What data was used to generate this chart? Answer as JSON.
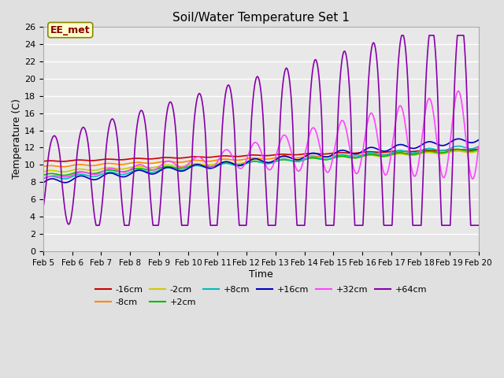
{
  "title": "Soil/Water Temperature Set 1",
  "xlabel": "Time",
  "ylabel": "Temperature (C)",
  "xlim": [
    0,
    15
  ],
  "ylim": [
    0,
    26
  ],
  "yticks": [
    0,
    2,
    4,
    6,
    8,
    10,
    12,
    14,
    16,
    18,
    20,
    22,
    24,
    26
  ],
  "xtick_labels": [
    "Feb 5",
    "Feb 6",
    "Feb 7",
    "Feb 8",
    "Feb 9",
    "Feb 10",
    "Feb 11",
    "Feb 12",
    "Feb 13",
    "Feb 14",
    "Feb 15",
    "Feb 16",
    "Feb 17",
    "Feb 18",
    "Feb 19",
    "Feb 20"
  ],
  "bg_color": "#e0e0e0",
  "plot_bg_color": "#e8e8e8",
  "series": {
    "-16cm": {
      "color": "#cc0000",
      "lw": 1.2
    },
    "-8cm": {
      "color": "#ff8800",
      "lw": 1.2
    },
    "-2cm": {
      "color": "#cccc00",
      "lw": 1.2
    },
    "+2cm": {
      "color": "#00bb00",
      "lw": 1.2
    },
    "+8cm": {
      "color": "#00bbbb",
      "lw": 1.2
    },
    "+16cm": {
      "color": "#0000bb",
      "lw": 1.2
    },
    "+32cm": {
      "color": "#ff44ff",
      "lw": 1.2
    },
    "+64cm": {
      "color": "#8800aa",
      "lw": 1.2
    }
  },
  "annotation": {
    "text": "EE_met",
    "text_color": "#880000",
    "bg_color": "#ffffcc",
    "border_color": "#888800"
  },
  "legend_ncol_row1": 6,
  "legend_ncol_row2": 2
}
